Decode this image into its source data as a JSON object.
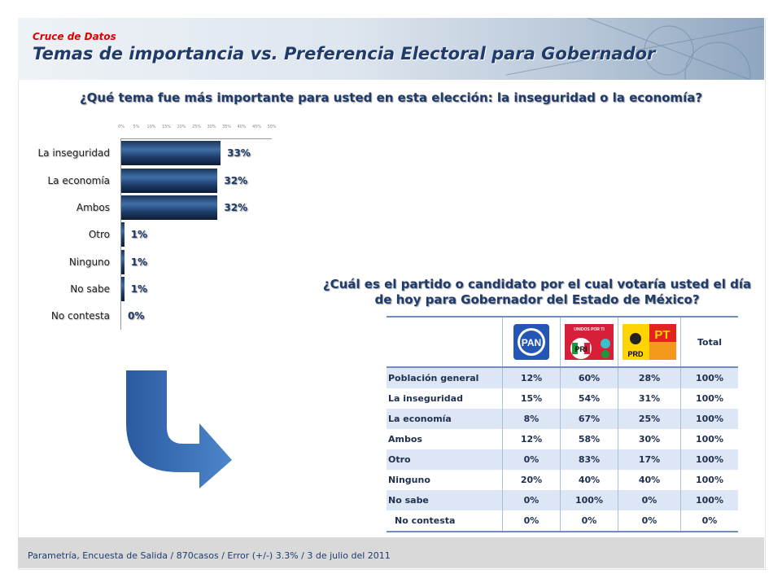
{
  "header": {
    "kicker": "Cruce de Datos",
    "title": "Temas de importancia vs. Preferencia Electoral para Gobernador"
  },
  "chart_data": [
    {
      "type": "bar",
      "orientation": "horizontal",
      "title": "¿Qué tema fue más importante para usted en esta elección: la inseguridad o la economía?",
      "categories": [
        "La inseguridad",
        "La economía",
        "Ambos",
        "Otro",
        "Ninguno",
        "No sabe",
        "No contesta"
      ],
      "values": [
        33,
        32,
        32,
        1,
        1,
        1,
        0
      ],
      "data_labels": [
        "33%",
        "32%",
        "32%",
        "1%",
        "1%",
        "1%",
        "0%"
      ],
      "xlim": [
        0,
        50
      ],
      "x_ticks": [
        "0%",
        "5%",
        "10%",
        "15%",
        "20%",
        "25%",
        "30%",
        "35%",
        "40%",
        "45%",
        "50%"
      ],
      "bar_color": "#1f3b6b"
    },
    {
      "type": "table",
      "title": "¿Cuál es el partido o candidato por el cual votaría usted el día de hoy para Gobernador del Estado de México?",
      "columns": [
        "",
        "PAN",
        "UNIDOS POR TI (PRI)",
        "PRD PT",
        "Total"
      ],
      "rows": [
        [
          "Población general",
          "12%",
          "60%",
          "28%",
          "100%"
        ],
        [
          "La inseguridad",
          "15%",
          "54%",
          "31%",
          "100%"
        ],
        [
          "La economía",
          "8%",
          "67%",
          "25%",
          "100%"
        ],
        [
          "Ambos",
          "12%",
          "58%",
          "30%",
          "100%"
        ],
        [
          "Otro",
          "0%",
          "83%",
          "17%",
          "100%"
        ],
        [
          "Ninguno",
          "20%",
          "40%",
          "40%",
          "100%"
        ],
        [
          "No sabe",
          "0%",
          "100%",
          "0%",
          "100%"
        ],
        [
          "No contesta",
          "0%",
          "0%",
          "0%",
          "0%"
        ]
      ],
      "total_label": "Total"
    }
  ],
  "logos": {
    "pan": "PAN",
    "pri_top": "UNIDOS POR TI",
    "pri": "PRI",
    "prd": "PRD",
    "pt": "PT"
  },
  "footer": "Parametría, Encuesta de Salida /  870casos  /  Error (+/-) 3.3%  / 3 de julio del 2011"
}
